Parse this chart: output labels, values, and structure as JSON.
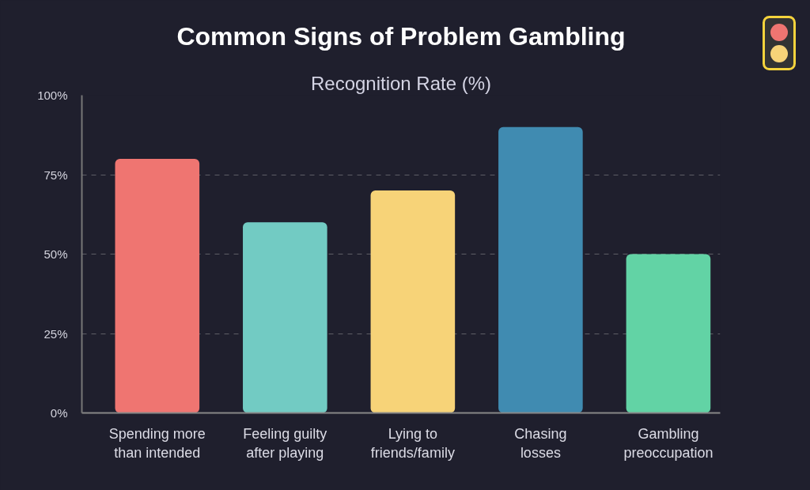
{
  "chart_data": {
    "type": "bar",
    "title": "Common Signs of Problem Gambling",
    "subtitle": "Recognition Rate (%)",
    "categories": [
      "Spending more than intended",
      "Feeling guilty after playing",
      "Lying to friends/family",
      "Chasing losses",
      "Gambling preoccupation"
    ],
    "values": [
      80,
      60,
      70,
      90,
      50
    ],
    "colors": [
      "#ef7571",
      "#72cbc3",
      "#f7d378",
      "#408bb1",
      "#62d3a5"
    ],
    "ylim": [
      0,
      100
    ],
    "yticks": [
      {
        "value": 0,
        "label": "0%"
      },
      {
        "value": 25,
        "label": "25%"
      },
      {
        "value": 50,
        "label": "50%"
      },
      {
        "value": 75,
        "label": "75%"
      },
      {
        "value": 100,
        "label": "100%"
      }
    ],
    "grid": "y"
  }
}
